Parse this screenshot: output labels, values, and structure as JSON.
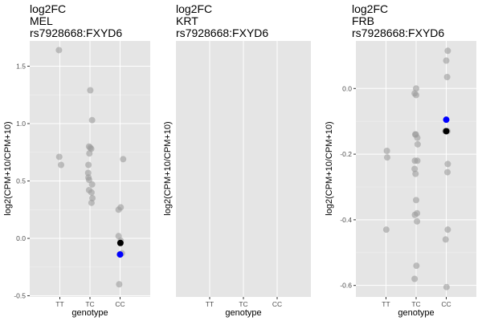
{
  "chart_data": [
    {
      "type": "scatter",
      "title": [
        "log2FC",
        "MEL",
        "rs7928668:FXYD6"
      ],
      "xlabel": "genotype",
      "ylabel": "log2(CPM+10/CPM+10)",
      "categories": [
        "TT",
        "TC",
        "CC"
      ],
      "yticks": [
        -0.5,
        0.0,
        0.5,
        1.0,
        1.5
      ],
      "ytick_labels": [
        "-0.5",
        "0.0",
        "0.5",
        "1.0",
        "1.5"
      ],
      "ylim": [
        -0.51,
        1.72
      ],
      "grid": true,
      "series": [
        {
          "color": "#9b9b9b",
          "opacity": 0.6,
          "points": [
            {
              "x": "TT",
              "y": 1.64,
              "jitter": -0.03
            },
            {
              "x": "TT",
              "y": 0.71,
              "jitter": -0.02
            },
            {
              "x": "TT",
              "y": 0.64,
              "jitter": 0.04
            },
            {
              "x": "TC",
              "y": 1.29,
              "jitter": 0.01
            },
            {
              "x": "TC",
              "y": 1.03,
              "jitter": 0.07
            },
            {
              "x": "TC",
              "y": 0.8,
              "jitter": -0.03
            },
            {
              "x": "TC",
              "y": 0.78,
              "jitter": 0.04
            },
            {
              "x": "TC",
              "y": 0.79,
              "jitter": 0.01
            },
            {
              "x": "TC",
              "y": 0.74,
              "jitter": -0.02
            },
            {
              "x": "TC",
              "y": 0.64,
              "jitter": -0.05
            },
            {
              "x": "TC",
              "y": 0.57,
              "jitter": -0.06
            },
            {
              "x": "TC",
              "y": 0.53,
              "jitter": -0.05
            },
            {
              "x": "TC",
              "y": 0.51,
              "jitter": -0.03
            },
            {
              "x": "TC",
              "y": 0.47,
              "jitter": 0.07
            },
            {
              "x": "TC",
              "y": 0.42,
              "jitter": -0.03
            },
            {
              "x": "TC",
              "y": 0.4,
              "jitter": 0.05
            },
            {
              "x": "TC",
              "y": 0.35,
              "jitter": 0.08
            },
            {
              "x": "TC",
              "y": 0.31,
              "jitter": 0.05
            },
            {
              "x": "CC",
              "y": 0.69,
              "jitter": 0.1
            },
            {
              "x": "CC",
              "y": 0.27,
              "jitter": 0.02
            },
            {
              "x": "CC",
              "y": 0.25,
              "jitter": -0.05
            },
            {
              "x": "CC",
              "y": 0.02,
              "jitter": -0.05
            },
            {
              "x": "CC",
              "y": -0.02,
              "jitter": 0.02
            },
            {
              "x": "CC",
              "y": -0.13,
              "jitter": 0.06
            },
            {
              "x": "CC",
              "y": -0.14,
              "jitter": -0.01
            },
            {
              "x": "CC",
              "y": -0.4,
              "jitter": -0.03
            }
          ]
        },
        {
          "color": "#0000ff",
          "opacity": 1,
          "points": [
            {
              "x": "CC",
              "y": -0.14,
              "jitter": 0.0
            }
          ]
        },
        {
          "color": "#000000",
          "opacity": 1,
          "points": [
            {
              "x": "CC",
              "y": -0.04,
              "jitter": 0.01
            }
          ]
        }
      ]
    },
    {
      "type": "scatter",
      "title": [
        "log2FC",
        "KRT",
        "rs7928668:FXYD6"
      ],
      "xlabel": "genotype",
      "ylabel": "log2(CPM+10/CPM+10)",
      "categories": [
        "TT",
        "TC",
        "CC"
      ],
      "yticks": [],
      "ytick_labels": [],
      "ylim": [
        0,
        1
      ],
      "grid": true,
      "series": []
    },
    {
      "type": "scatter",
      "title": [
        "log2FC",
        "FRB",
        "rs7928668:FXYD6"
      ],
      "xlabel": "genotype",
      "ylabel": "log2(CPM+10/CPM+10)",
      "categories": [
        "TT",
        "TC",
        "CC"
      ],
      "yticks": [
        -0.6,
        -0.4,
        -0.2,
        0.0
      ],
      "ytick_labels": [
        "-0.6",
        "-0.4",
        "-0.2",
        "0.0"
      ],
      "ylim": [
        -0.635,
        0.145
      ],
      "grid": true,
      "series": [
        {
          "color": "#9b9b9b",
          "opacity": 0.6,
          "points": [
            {
              "x": "TT",
              "y": -0.19,
              "jitter": 0.03
            },
            {
              "x": "TT",
              "y": -0.21,
              "jitter": 0.04
            },
            {
              "x": "TT",
              "y": -0.43,
              "jitter": 0.01
            },
            {
              "x": "TC",
              "y": 0.0,
              "jitter": 0.0
            },
            {
              "x": "TC",
              "y": -0.015,
              "jitter": -0.05
            },
            {
              "x": "TC",
              "y": -0.02,
              "jitter": 0.0
            },
            {
              "x": "TC",
              "y": -0.14,
              "jitter": -0.03
            },
            {
              "x": "TC",
              "y": -0.14,
              "jitter": -0.01
            },
            {
              "x": "TC",
              "y": -0.15,
              "jitter": 0.04
            },
            {
              "x": "TC",
              "y": -0.17,
              "jitter": 0.05
            },
            {
              "x": "TC",
              "y": -0.22,
              "jitter": -0.04
            },
            {
              "x": "TC",
              "y": -0.22,
              "jitter": 0.04
            },
            {
              "x": "TC",
              "y": -0.245,
              "jitter": -0.05
            },
            {
              "x": "TC",
              "y": -0.26,
              "jitter": -0.02
            },
            {
              "x": "TC",
              "y": -0.34,
              "jitter": 0.0
            },
            {
              "x": "TC",
              "y": -0.38,
              "jitter": 0.03
            },
            {
              "x": "TC",
              "y": -0.385,
              "jitter": -0.04
            },
            {
              "x": "TC",
              "y": -0.405,
              "jitter": 0.03
            },
            {
              "x": "TC",
              "y": -0.54,
              "jitter": 0.01
            },
            {
              "x": "TC",
              "y": -0.58,
              "jitter": -0.05
            },
            {
              "x": "CC",
              "y": 0.115,
              "jitter": 0.05
            },
            {
              "x": "CC",
              "y": 0.085,
              "jitter": 0.0
            },
            {
              "x": "CC",
              "y": 0.035,
              "jitter": 0.03
            },
            {
              "x": "CC",
              "y": -0.13,
              "jitter": 0.04
            },
            {
              "x": "CC",
              "y": -0.13,
              "jitter": -0.03
            },
            {
              "x": "CC",
              "y": -0.23,
              "jitter": 0.05
            },
            {
              "x": "CC",
              "y": -0.255,
              "jitter": 0.04
            },
            {
              "x": "CC",
              "y": -0.43,
              "jitter": 0.05
            },
            {
              "x": "CC",
              "y": -0.46,
              "jitter": -0.02
            },
            {
              "x": "CC",
              "y": -0.605,
              "jitter": 0.01
            }
          ]
        },
        {
          "color": "#0000ff",
          "opacity": 1,
          "points": [
            {
              "x": "CC",
              "y": -0.095,
              "jitter": 0.0
            }
          ]
        },
        {
          "color": "#000000",
          "opacity": 1,
          "points": [
            {
              "x": "CC",
              "y": -0.13,
              "jitter": 0.0
            }
          ]
        }
      ]
    }
  ]
}
